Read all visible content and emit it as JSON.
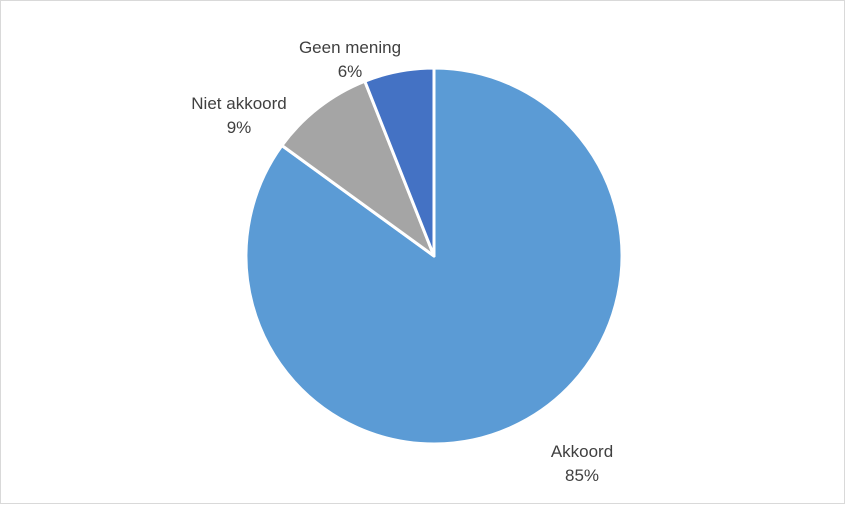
{
  "chart_data": {
    "type": "pie",
    "title": "",
    "start_angle": "top",
    "direction": "clockwise",
    "legend": "none",
    "slices": [
      {
        "label": "Akkoord",
        "percent_label": "85%",
        "value": 85,
        "color": "#5b9bd5"
      },
      {
        "label": "Niet akkoord",
        "percent_label": "9%",
        "value": 9,
        "color": "#a5a5a5"
      },
      {
        "label": "Geen mening",
        "percent_label": "6%",
        "value": 6,
        "color": "#4472c4"
      }
    ]
  }
}
